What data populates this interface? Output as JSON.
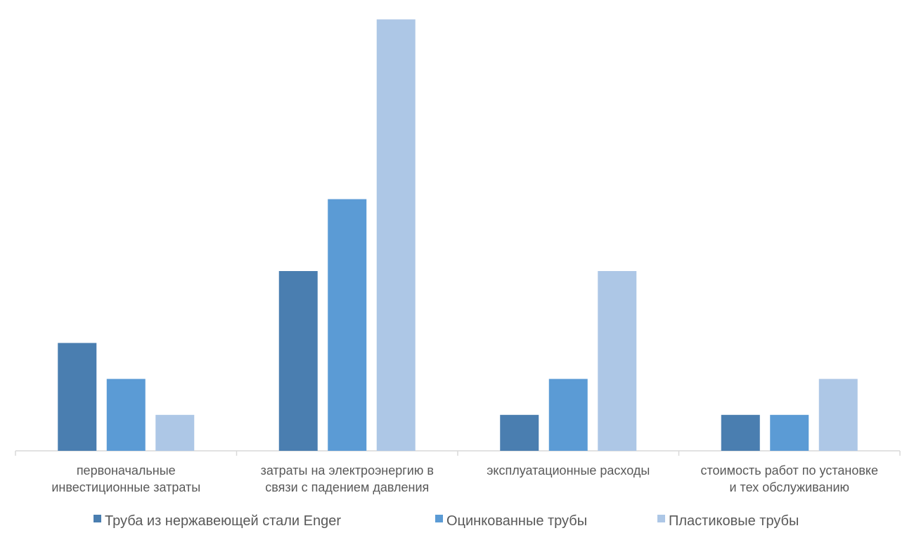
{
  "chart_data": {
    "type": "bar",
    "title": "",
    "xlabel": "",
    "ylabel": "",
    "ylim": [
      0,
      12.5
    ],
    "grid": false,
    "y_axis_visible": false,
    "legend_position": "bottom",
    "categories": [
      [
        "первоначальные",
        "инвестиционные затраты"
      ],
      [
        "затраты на электроэнергию в",
        "связи с падением давления"
      ],
      [
        "эксплуатационные расходы"
      ],
      [
        "стоимость работ по установке",
        "и тех обслуживанию"
      ]
    ],
    "series": [
      {
        "name": "Труба из нержавеющей стали Enger",
        "color": "#4a7eb0",
        "values": [
          3,
          5,
          1,
          1
        ]
      },
      {
        "name": "Оцинкованные трубы",
        "color": "#5b9bd5",
        "values": [
          2,
          7,
          2,
          1
        ]
      },
      {
        "name": "Пластиковые трубы",
        "color": "#adc7e6",
        "values": [
          1,
          12,
          5,
          2
        ]
      }
    ]
  }
}
